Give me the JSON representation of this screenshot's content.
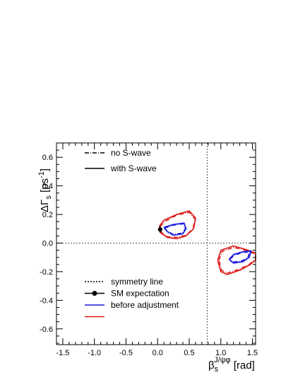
{
  "chart_data": {
    "type": "contour",
    "xlabel": {
      "main": "β",
      "sub": "s",
      "sup": "J/ψφ",
      "unit": " [rad]"
    },
    "ylabel": {
      "main": "ΔΓ",
      "sub": "s",
      "unit_pre": " [ps",
      "unit_sup": "-1",
      "unit_post": "]"
    },
    "xlim": [
      -1.6,
      1.55
    ],
    "ylim": [
      -0.71,
      0.7
    ],
    "x_ticks": [
      -1.5,
      -1.0,
      -0.5,
      0.0,
      0.5,
      1.0,
      1.5
    ],
    "x_tick_labels": [
      "-1.5",
      "-1.0",
      "-0.5",
      "0.0",
      "0.5",
      "1.0",
      "1.5"
    ],
    "y_ticks": [
      -0.6,
      -0.4,
      -0.2,
      0.0,
      0.2,
      0.4,
      0.6
    ],
    "y_tick_labels": [
      "-0.6",
      "-0.4",
      "-0.2",
      "0.0",
      "0.2",
      "0.4",
      "0.6"
    ],
    "symmetry_lines": {
      "x": 0.785,
      "y": 0.0
    },
    "sm_point": {
      "x": 0.04,
      "y": 0.095,
      "yerr": 0.025
    },
    "legend_top": [
      {
        "label": "no S-wave",
        "style": "dashdot"
      },
      {
        "label": "with S-wave",
        "style": "solid"
      }
    ],
    "legend_bottom": [
      {
        "label": "symmetry line",
        "style": "dotted"
      },
      {
        "label": "SM expectation",
        "style": "marker"
      },
      {
        "label": "before adjustment",
        "style": "solid",
        "color": "#1a1adc"
      },
      {
        "label": "",
        "style": "solid",
        "color": "#dc1a1a"
      }
    ],
    "series": [
      {
        "color": "#dc1a1a",
        "style": "solid",
        "points": [
          [
            0.03,
            0.12
          ],
          [
            0.1,
            0.16
          ],
          [
            0.3,
            0.2
          ],
          [
            0.5,
            0.225
          ],
          [
            0.6,
            0.175
          ],
          [
            0.57,
            0.1
          ],
          [
            0.45,
            0.05
          ],
          [
            0.3,
            0.03
          ],
          [
            0.15,
            0.04
          ],
          [
            0.05,
            0.07
          ],
          [
            0.03,
            0.12
          ]
        ]
      },
      {
        "color": "#dc1a1a",
        "style": "dashdot",
        "points": [
          [
            0.04,
            0.115
          ],
          [
            0.11,
            0.15
          ],
          [
            0.3,
            0.195
          ],
          [
            0.5,
            0.215
          ],
          [
            0.59,
            0.17
          ],
          [
            0.56,
            0.1
          ],
          [
            0.45,
            0.055
          ],
          [
            0.3,
            0.04
          ],
          [
            0.15,
            0.045
          ],
          [
            0.06,
            0.075
          ],
          [
            0.04,
            0.115
          ]
        ]
      },
      {
        "color": "#1a1adc",
        "style": "solid",
        "points": [
          [
            0.1,
            0.11
          ],
          [
            0.25,
            0.13
          ],
          [
            0.42,
            0.14
          ],
          [
            0.45,
            0.1
          ],
          [
            0.4,
            0.065
          ],
          [
            0.25,
            0.055
          ],
          [
            0.15,
            0.08
          ],
          [
            0.1,
            0.11
          ]
        ]
      },
      {
        "color": "#1a1adc",
        "style": "dashdot",
        "points": [
          [
            0.11,
            0.105
          ],
          [
            0.25,
            0.125
          ],
          [
            0.41,
            0.135
          ],
          [
            0.44,
            0.1
          ],
          [
            0.39,
            0.07
          ],
          [
            0.25,
            0.06
          ],
          [
            0.16,
            0.082
          ],
          [
            0.11,
            0.105
          ]
        ]
      },
      {
        "color": "#dc1a1a",
        "style": "solid",
        "points": [
          [
            0.95,
            -0.12
          ],
          [
            1.0,
            -0.05
          ],
          [
            1.2,
            -0.02
          ],
          [
            1.4,
            -0.045
          ],
          [
            1.55,
            -0.07
          ],
          [
            1.55,
            -0.12
          ],
          [
            1.45,
            -0.155
          ],
          [
            1.3,
            -0.19
          ],
          [
            1.1,
            -0.22
          ],
          [
            1.0,
            -0.2
          ],
          [
            0.95,
            -0.12
          ]
        ]
      },
      {
        "color": "#dc1a1a",
        "style": "dashdot",
        "points": [
          [
            0.97,
            -0.12
          ],
          [
            1.02,
            -0.058
          ],
          [
            1.2,
            -0.03
          ],
          [
            1.4,
            -0.05
          ],
          [
            1.55,
            -0.078
          ],
          [
            1.55,
            -0.115
          ],
          [
            1.45,
            -0.148
          ],
          [
            1.3,
            -0.182
          ],
          [
            1.1,
            -0.21
          ],
          [
            1.01,
            -0.19
          ],
          [
            0.97,
            -0.12
          ]
        ]
      },
      {
        "color": "#1a1adc",
        "style": "solid",
        "points": [
          [
            1.13,
            -0.115
          ],
          [
            1.2,
            -0.08
          ],
          [
            1.35,
            -0.06
          ],
          [
            1.48,
            -0.055
          ],
          [
            1.45,
            -0.1
          ],
          [
            1.35,
            -0.13
          ],
          [
            1.2,
            -0.14
          ],
          [
            1.13,
            -0.115
          ]
        ]
      },
      {
        "color": "#1a1adc",
        "style": "dashdot",
        "points": [
          [
            1.15,
            -0.112
          ],
          [
            1.21,
            -0.085
          ],
          [
            1.35,
            -0.066
          ],
          [
            1.46,
            -0.062
          ],
          [
            1.43,
            -0.098
          ],
          [
            1.34,
            -0.124
          ],
          [
            1.2,
            -0.132
          ],
          [
            1.15,
            -0.112
          ]
        ]
      }
    ]
  }
}
